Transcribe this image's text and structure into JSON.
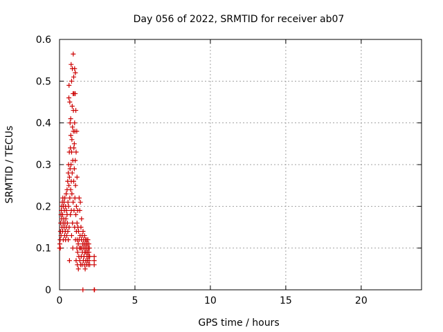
{
  "chart_data": {
    "type": "scatter",
    "title": "Day 056 of 2022, SRMTID for receiver ab07",
    "xlabel": "GPS time / hours",
    "ylabel": "SRMTID / TECUs",
    "xlim": [
      0,
      24
    ],
    "ylim": [
      0,
      0.6
    ],
    "xticks": [
      0,
      5,
      10,
      15,
      20
    ],
    "xtick_labels": [
      "0",
      "5",
      "10",
      "15",
      "20"
    ],
    "yticks": [
      0,
      0.1,
      0.2,
      0.3,
      0.4,
      0.5,
      0.6
    ],
    "ytick_labels": [
      "0",
      "0.1",
      "0.2",
      "0.3",
      "0.4",
      "0.5",
      "0.6"
    ],
    "grid": true,
    "marker": "+",
    "color": "#cc0000",
    "series": [
      {
        "name": "SRMTID",
        "points": [
          [
            0.0,
            0.1
          ],
          [
            0.02,
            0.11
          ],
          [
            0.04,
            0.12
          ],
          [
            0.05,
            0.1
          ],
          [
            0.06,
            0.14
          ],
          [
            0.08,
            0.16
          ],
          [
            0.1,
            0.18
          ],
          [
            0.1,
            0.13
          ],
          [
            0.12,
            0.19
          ],
          [
            0.14,
            0.17
          ],
          [
            0.15,
            0.2
          ],
          [
            0.16,
            0.15
          ],
          [
            0.18,
            0.21
          ],
          [
            0.2,
            0.14
          ],
          [
            0.2,
            0.18
          ],
          [
            0.22,
            0.22
          ],
          [
            0.24,
            0.16
          ],
          [
            0.25,
            0.12
          ],
          [
            0.26,
            0.2
          ],
          [
            0.28,
            0.17
          ],
          [
            0.3,
            0.15
          ],
          [
            0.3,
            0.21
          ],
          [
            0.32,
            0.19
          ],
          [
            0.34,
            0.13
          ],
          [
            0.35,
            0.22
          ],
          [
            0.36,
            0.16
          ],
          [
            0.38,
            0.14
          ],
          [
            0.4,
            0.2
          ],
          [
            0.4,
            0.12
          ],
          [
            0.42,
            0.17
          ],
          [
            0.44,
            0.23
          ],
          [
            0.45,
            0.15
          ],
          [
            0.46,
            0.19
          ],
          [
            0.48,
            0.13
          ],
          [
            0.5,
            0.24
          ],
          [
            0.5,
            0.18
          ],
          [
            0.52,
            0.16
          ],
          [
            0.54,
            0.26
          ],
          [
            0.55,
            0.14
          ],
          [
            0.56,
            0.21
          ],
          [
            0.58,
            0.28
          ],
          [
            0.58,
            0.12
          ],
          [
            0.6,
            0.3
          ],
          [
            0.6,
            0.2
          ],
          [
            0.62,
            0.25
          ],
          [
            0.62,
            0.46
          ],
          [
            0.63,
            0.49
          ],
          [
            0.64,
            0.15
          ],
          [
            0.65,
            0.33
          ],
          [
            0.66,
            0.27
          ],
          [
            0.66,
            0.07
          ],
          [
            0.68,
            0.22
          ],
          [
            0.68,
            0.45
          ],
          [
            0.7,
            0.29
          ],
          [
            0.7,
            0.4
          ],
          [
            0.72,
            0.34
          ],
          [
            0.72,
            0.18
          ],
          [
            0.74,
            0.41
          ],
          [
            0.74,
            0.24
          ],
          [
            0.75,
            0.37
          ],
          [
            0.76,
            0.3
          ],
          [
            0.77,
            0.54
          ],
          [
            0.78,
            0.26
          ],
          [
            0.78,
            0.19
          ],
          [
            0.8,
            0.33
          ],
          [
            0.8,
            0.5
          ],
          [
            0.8,
            0.13
          ],
          [
            0.82,
            0.36
          ],
          [
            0.82,
            0.23
          ],
          [
            0.84,
            0.44
          ],
          [
            0.84,
            0.28
          ],
          [
            0.85,
            0.53
          ],
          [
            0.86,
            0.16
          ],
          [
            0.86,
            0.39
          ],
          [
            0.88,
            0.31
          ],
          [
            0.88,
            0.1
          ],
          [
            0.9,
            0.21
          ],
          [
            0.9,
            0.47
          ],
          [
            0.91,
            0.565
          ],
          [
            0.92,
            0.38
          ],
          [
            0.92,
            0.43
          ],
          [
            0.94,
            0.51
          ],
          [
            0.94,
            0.26
          ],
          [
            0.95,
            0.34
          ],
          [
            0.96,
            0.19
          ],
          [
            0.96,
            0.47
          ],
          [
            0.98,
            0.29
          ],
          [
            0.98,
            0.35
          ],
          [
            1.0,
            0.53
          ],
          [
            1.0,
            0.4
          ],
          [
            1.0,
            0.15
          ],
          [
            1.02,
            0.22
          ],
          [
            1.02,
            0.38
          ],
          [
            1.04,
            0.47
          ],
          [
            1.04,
            0.31
          ],
          [
            1.05,
            0.52
          ],
          [
            1.06,
            0.12
          ],
          [
            1.06,
            0.25
          ],
          [
            1.08,
            0.43
          ],
          [
            1.08,
            0.18
          ],
          [
            1.1,
            0.07
          ],
          [
            1.1,
            0.33
          ],
          [
            1.12,
            0.2
          ],
          [
            1.12,
            0.14
          ],
          [
            1.14,
            0.38
          ],
          [
            1.15,
            0.1
          ],
          [
            1.16,
            0.16
          ],
          [
            1.16,
            0.27
          ],
          [
            1.18,
            0.12
          ],
          [
            1.18,
            0.06
          ],
          [
            1.2,
            0.19
          ],
          [
            1.2,
            0.09
          ],
          [
            1.22,
            0.15
          ],
          [
            1.24,
            0.11
          ],
          [
            1.25,
            0.05
          ],
          [
            1.26,
            0.14
          ],
          [
            1.28,
            0.08
          ],
          [
            1.3,
            0.12
          ],
          [
            1.3,
            0.22
          ],
          [
            1.32,
            0.1
          ],
          [
            1.34,
            0.19
          ],
          [
            1.35,
            0.07
          ],
          [
            1.36,
            0.13
          ],
          [
            1.38,
            0.21
          ],
          [
            1.4,
            0.1
          ],
          [
            1.4,
            0.06
          ],
          [
            1.42,
            0.15
          ],
          [
            1.44,
            0.08
          ],
          [
            1.45,
            0.12
          ],
          [
            1.46,
            0.17
          ],
          [
            1.48,
            0.1
          ],
          [
            1.5,
            0.06
          ],
          [
            1.5,
            0.13
          ],
          [
            1.52,
            0.09
          ],
          [
            1.54,
            0.11
          ],
          [
            1.55,
            0.0
          ],
          [
            1.56,
            0.14
          ],
          [
            1.58,
            0.07
          ],
          [
            1.6,
            0.1
          ],
          [
            1.6,
            0.12
          ],
          [
            1.62,
            0.08
          ],
          [
            1.64,
            0.11
          ],
          [
            1.65,
            0.06
          ],
          [
            1.66,
            0.13
          ],
          [
            1.68,
            0.09
          ],
          [
            1.7,
            0.1
          ],
          [
            1.7,
            0.05
          ],
          [
            1.72,
            0.12
          ],
          [
            1.74,
            0.07
          ],
          [
            1.75,
            0.11
          ],
          [
            1.76,
            0.09
          ],
          [
            1.78,
            0.06
          ],
          [
            1.8,
            0.1
          ],
          [
            1.8,
            0.12
          ],
          [
            1.82,
            0.08
          ],
          [
            1.84,
            0.11
          ],
          [
            1.85,
            0.07
          ],
          [
            1.86,
            0.09
          ],
          [
            1.88,
            0.12
          ],
          [
            1.9,
            0.06
          ],
          [
            1.9,
            0.1
          ],
          [
            1.92,
            0.08
          ],
          [
            1.94,
            0.11
          ],
          [
            1.95,
            0.09
          ],
          [
            1.96,
            0.07
          ],
          [
            1.98,
            0.1
          ],
          [
            2.0,
            0.08
          ],
          [
            2.0,
            0.06
          ],
          [
            2.3,
            0.07
          ],
          [
            2.3,
            0.08
          ],
          [
            2.3,
            0.06
          ],
          [
            2.3,
            0.0
          ],
          [
            2.32,
            0.0
          ]
        ]
      }
    ]
  }
}
